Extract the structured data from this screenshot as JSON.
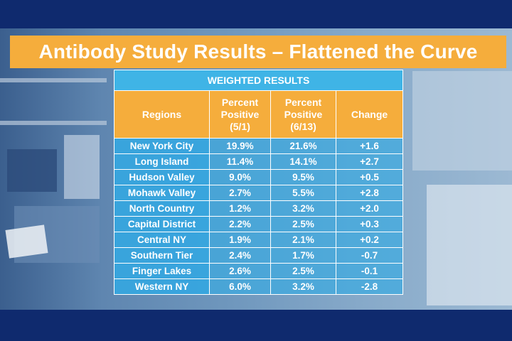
{
  "title": "Antibody Study Results – Flattened the Curve",
  "table": {
    "group_header": "WEIGHTED RESULTS",
    "columns": {
      "region": "Regions",
      "pct1_line1": "Percent",
      "pct1_line2": "Positive",
      "pct1_line3": "(5/1)",
      "pct2_line1": "Percent",
      "pct2_line2": "Positive",
      "pct2_line3": "(6/13)",
      "change": "Change"
    },
    "rows": [
      {
        "region": "New York City",
        "p1": "19.9%",
        "p2": "21.6%",
        "change": "+1.6"
      },
      {
        "region": "Long Island",
        "p1": "11.4%",
        "p2": "14.1%",
        "change": "+2.7"
      },
      {
        "region": "Hudson Valley",
        "p1": "9.0%",
        "p2": "9.5%",
        "change": "+0.5"
      },
      {
        "region": "Mohawk Valley",
        "p1": "2.7%",
        "p2": "5.5%",
        "change": "+2.8"
      },
      {
        "region": "North Country",
        "p1": "1.2%",
        "p2": "3.2%",
        "change": "+2.0"
      },
      {
        "region": "Capital District",
        "p1": "2.2%",
        "p2": "2.5%",
        "change": "+0.3"
      },
      {
        "region": "Central NY",
        "p1": "1.9%",
        "p2": "2.1%",
        "change": "+0.2"
      },
      {
        "region": "Southern Tier",
        "p1": "2.4%",
        "p2": "1.7%",
        "change": "-0.7"
      },
      {
        "region": "Finger Lakes",
        "p1": "2.6%",
        "p2": "2.5%",
        "change": "-0.1"
      },
      {
        "region": "Western NY",
        "p1": "6.0%",
        "p2": "3.2%",
        "change": "-2.8"
      }
    ]
  },
  "chart_data": {
    "type": "table",
    "title": "Antibody Study Results – Flattened the Curve",
    "columns": [
      "Regions",
      "Percent Positive (5/1)",
      "Percent Positive (6/13)",
      "Change"
    ],
    "rows": [
      [
        "New York City",
        19.9,
        21.6,
        1.6
      ],
      [
        "Long Island",
        11.4,
        14.1,
        2.7
      ],
      [
        "Hudson Valley",
        9.0,
        9.5,
        0.5
      ],
      [
        "Mohawk Valley",
        2.7,
        5.5,
        2.8
      ],
      [
        "North Country",
        1.2,
        3.2,
        2.0
      ],
      [
        "Capital District",
        2.2,
        2.5,
        0.3
      ],
      [
        "Central NY",
        1.9,
        2.1,
        0.2
      ],
      [
        "Southern Tier",
        2.4,
        1.7,
        -0.7
      ],
      [
        "Finger Lakes",
        2.6,
        2.5,
        -0.1
      ],
      [
        "Western NY",
        6.0,
        3.2,
        -2.8
      ]
    ]
  },
  "colors": {
    "title_bar": "#f5ad3c",
    "header_blue": "#3fb4e6",
    "cell_blue": "#3caae1",
    "border_navy": "#0f2a6e"
  }
}
